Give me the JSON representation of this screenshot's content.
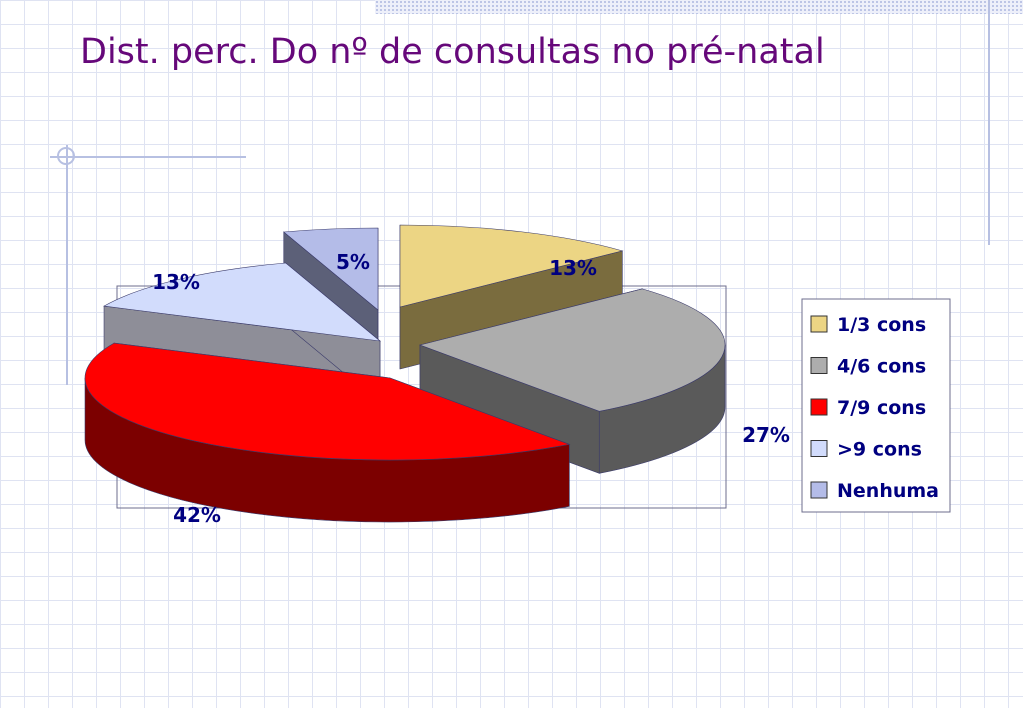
{
  "slide": {
    "title": "Dist. perc. Do nº de consultas  no pré-natal"
  },
  "chart_data": {
    "type": "pie",
    "three_d": true,
    "categories": [
      "1/3 cons",
      "4/6 cons",
      "7/9 cons",
      ">9 cons",
      "Nenhuma"
    ],
    "values": [
      13,
      27,
      42,
      13,
      5
    ],
    "data_labels": [
      "13%",
      "27%",
      "42%",
      "13%",
      "5%"
    ],
    "colors": [
      "#ecd584",
      "#adadad",
      "#ff0000",
      "#d2dcfc",
      "#b4bce8"
    ],
    "side_colors": [
      "#7a6c3e",
      "#5a5a5a",
      "#7c0000",
      "#8e8e98",
      "#5c6078"
    ],
    "exploded": true,
    "legend_position": "right",
    "title": ""
  }
}
